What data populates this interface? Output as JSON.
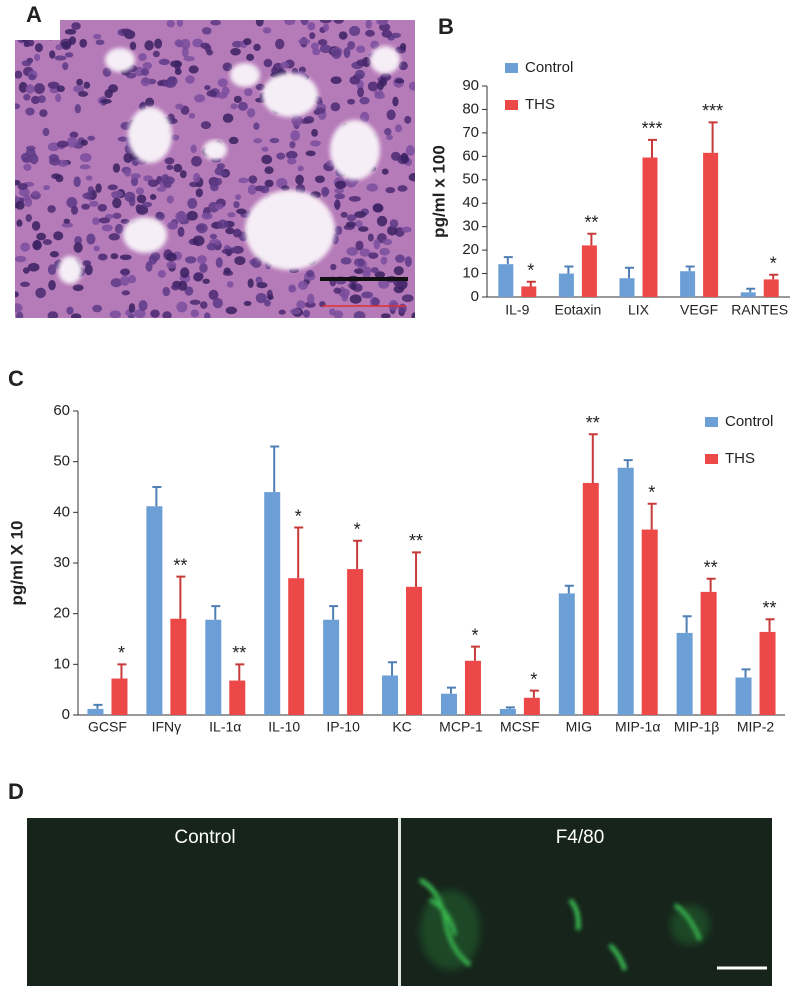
{
  "panel_labels": [
    "A",
    "B",
    "C",
    "D"
  ],
  "image_labels": {
    "control": "Control",
    "stain": "F4/80"
  },
  "chart_data": [
    {
      "type": "bar",
      "ylabel": "pg/ml x 100",
      "categories": [
        "IL-9",
        "Eotaxin",
        "LIX",
        "VEGF",
        "RANTES"
      ],
      "series": [
        {
          "name": "Control",
          "color": "#6c9fd6",
          "values": [
            14,
            10,
            8,
            11,
            2
          ],
          "errors": [
            3,
            3,
            4.5,
            2,
            1.5
          ],
          "annotations": [
            null,
            null,
            null,
            null,
            null
          ]
        },
        {
          "name": "THS",
          "color": "#ec4848",
          "values": [
            4.5,
            22,
            59.5,
            61.5,
            7.5
          ],
          "errors": [
            2,
            5,
            7.5,
            13,
            2
          ],
          "annotations": [
            "*",
            "**",
            "***",
            "***",
            "*"
          ]
        }
      ],
      "ylim": [
        0,
        90
      ],
      "yticks": [
        0,
        10,
        20,
        30,
        40,
        50,
        60,
        70,
        80,
        90
      ],
      "legend": "upper left"
    },
    {
      "type": "bar",
      "ylabel": "pg/ml X 10",
      "categories": [
        "GCSF",
        "IFNγ",
        "IL-1α",
        "IL-10",
        "IP-10",
        "KC",
        "MCP-1",
        "MCSF",
        "MIG",
        "MIP-1α",
        "MIP-1β",
        "MIP-2"
      ],
      "series": [
        {
          "name": "Control",
          "color": "#6c9fd6",
          "values": [
            1.2,
            41.2,
            18.8,
            44,
            18.8,
            7.8,
            4.2,
            1.2,
            24,
            48.8,
            16.2,
            7.4
          ],
          "errors": [
            0.8,
            3.8,
            2.7,
            9,
            2.7,
            2.6,
            1.2,
            0.3,
            1.5,
            1.5,
            3.3,
            1.6
          ],
          "annotations": [
            null,
            null,
            null,
            null,
            null,
            null,
            null,
            null,
            null,
            null,
            null,
            null
          ]
        },
        {
          "name": "THS",
          "color": "#ec4848",
          "values": [
            7.2,
            19,
            6.8,
            27,
            28.8,
            25.3,
            10.7,
            3.4,
            45.8,
            36.6,
            24.3,
            16.4
          ],
          "errors": [
            2.8,
            8.3,
            3.2,
            10,
            5.6,
            6.8,
            2.8,
            1.4,
            9.6,
            5.1,
            2.6,
            2.5
          ],
          "annotations": [
            "*",
            "**",
            "**",
            "*",
            "*",
            "**",
            "*",
            "*",
            "**",
            "*",
            "**",
            "**"
          ]
        }
      ],
      "ylim": [
        0,
        60
      ],
      "yticks": [
        0,
        10,
        20,
        30,
        40,
        50,
        60
      ],
      "legend": "upper right"
    }
  ]
}
